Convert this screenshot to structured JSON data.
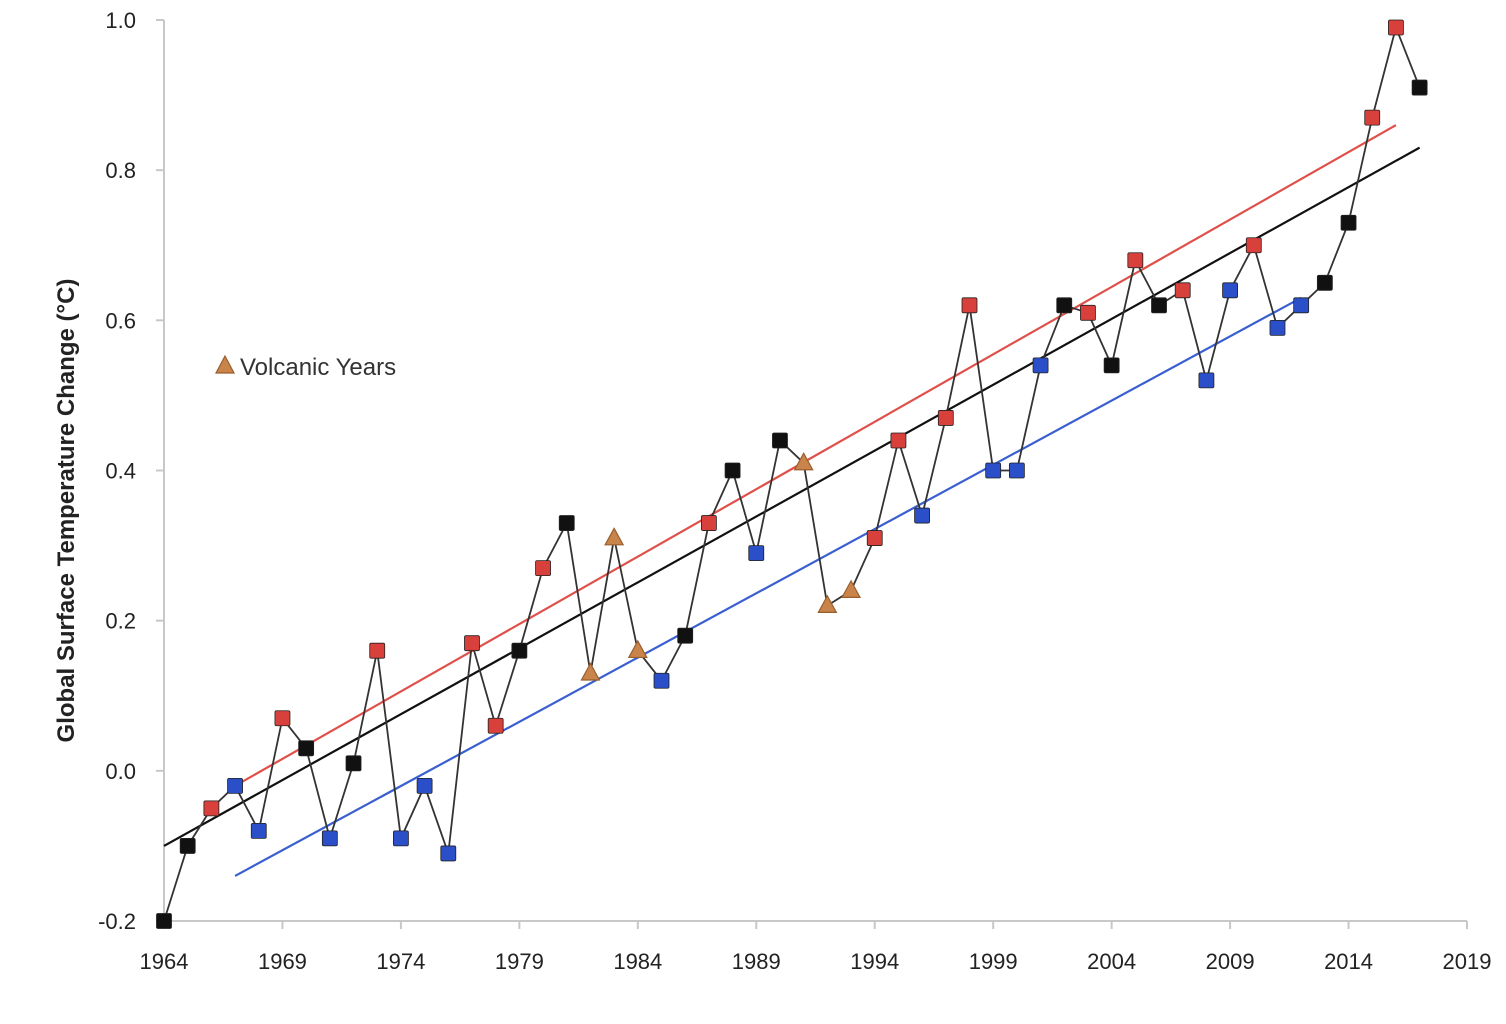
{
  "chart_data": {
    "type": "line",
    "title": "",
    "xlabel": "",
    "ylabel": "Global Surface Temperature Change (°C)",
    "xlim": [
      1964,
      2019
    ],
    "ylim": [
      -0.2,
      1.0
    ],
    "x_ticks": [
      "1964",
      "1969",
      "1974",
      "1979",
      "1984",
      "1989",
      "1994",
      "1999",
      "2004",
      "2009",
      "2014",
      "2019"
    ],
    "y_ticks": [
      "-0.2",
      "0.0",
      "0.2",
      "0.4",
      "0.6",
      "0.8",
      "1.0"
    ],
    "grid": false,
    "legend": {
      "placement": "left",
      "entries": [
        {
          "label": "Volcanic Years",
          "marker": "triangle",
          "color": "#c8844a"
        }
      ]
    },
    "colors": {
      "red": "#d8403c",
      "blue": "#2a4fc8",
      "black": "#111111",
      "volcanic": "#c8844a",
      "red_line": "#e0504a",
      "black_line": "#111111",
      "blue_line": "#3a5fd0"
    },
    "series": [
      {
        "values": [
          {
            "x": 1964,
            "y": -0.2,
            "c": "black"
          },
          {
            "x": 1965,
            "y": -0.1,
            "c": "black"
          },
          {
            "x": 1966,
            "y": -0.05,
            "c": "red"
          },
          {
            "x": 1967,
            "y": -0.02,
            "c": "blue"
          },
          {
            "x": 1968,
            "y": -0.08,
            "c": "blue"
          },
          {
            "x": 1969,
            "y": 0.07,
            "c": "red"
          },
          {
            "x": 1970,
            "y": 0.03,
            "c": "black"
          },
          {
            "x": 1971,
            "y": -0.09,
            "c": "blue"
          },
          {
            "x": 1972,
            "y": 0.01,
            "c": "black"
          },
          {
            "x": 1973,
            "y": 0.16,
            "c": "red"
          },
          {
            "x": 1974,
            "y": -0.09,
            "c": "blue"
          },
          {
            "x": 1975,
            "y": -0.02,
            "c": "blue"
          },
          {
            "x": 1976,
            "y": -0.11,
            "c": "blue"
          },
          {
            "x": 1977,
            "y": 0.17,
            "c": "red"
          },
          {
            "x": 1978,
            "y": 0.06,
            "c": "red"
          },
          {
            "x": 1979,
            "y": 0.16,
            "c": "black"
          },
          {
            "x": 1980,
            "y": 0.27,
            "c": "red"
          },
          {
            "x": 1981,
            "y": 0.33,
            "c": "black"
          },
          {
            "x": 1982,
            "y": 0.13,
            "c": "volcanic"
          },
          {
            "x": 1983,
            "y": 0.31,
            "c": "volcanic"
          },
          {
            "x": 1984,
            "y": 0.16,
            "c": "volcanic"
          },
          {
            "x": 1985,
            "y": 0.12,
            "c": "blue"
          },
          {
            "x": 1986,
            "y": 0.18,
            "c": "black"
          },
          {
            "x": 1987,
            "y": 0.33,
            "c": "red"
          },
          {
            "x": 1988,
            "y": 0.4,
            "c": "black"
          },
          {
            "x": 1989,
            "y": 0.29,
            "c": "blue"
          },
          {
            "x": 1990,
            "y": 0.44,
            "c": "black"
          },
          {
            "x": 1991,
            "y": 0.41,
            "c": "volcanic"
          },
          {
            "x": 1992,
            "y": 0.22,
            "c": "volcanic"
          },
          {
            "x": 1993,
            "y": 0.24,
            "c": "volcanic"
          },
          {
            "x": 1994,
            "y": 0.31,
            "c": "red"
          },
          {
            "x": 1995,
            "y": 0.44,
            "c": "red"
          },
          {
            "x": 1996,
            "y": 0.34,
            "c": "blue"
          },
          {
            "x": 1997,
            "y": 0.47,
            "c": "red"
          },
          {
            "x": 1998,
            "y": 0.62,
            "c": "red"
          },
          {
            "x": 1999,
            "y": 0.4,
            "c": "blue"
          },
          {
            "x": 2000,
            "y": 0.4,
            "c": "blue"
          },
          {
            "x": 2001,
            "y": 0.54,
            "c": "blue"
          },
          {
            "x": 2002,
            "y": 0.62,
            "c": "black"
          },
          {
            "x": 2003,
            "y": 0.61,
            "c": "red"
          },
          {
            "x": 2004,
            "y": 0.54,
            "c": "black"
          },
          {
            "x": 2005,
            "y": 0.68,
            "c": "red"
          },
          {
            "x": 2006,
            "y": 0.62,
            "c": "black"
          },
          {
            "x": 2007,
            "y": 0.64,
            "c": "red"
          },
          {
            "x": 2008,
            "y": 0.52,
            "c": "blue"
          },
          {
            "x": 2009,
            "y": 0.64,
            "c": "blue"
          },
          {
            "x": 2010,
            "y": 0.7,
            "c": "red"
          },
          {
            "x": 2011,
            "y": 0.59,
            "c": "blue"
          },
          {
            "x": 2012,
            "y": 0.62,
            "c": "blue"
          },
          {
            "x": 2013,
            "y": 0.65,
            "c": "black"
          },
          {
            "x": 2014,
            "y": 0.73,
            "c": "black"
          },
          {
            "x": 2015,
            "y": 0.87,
            "c": "red"
          },
          {
            "x": 2016,
            "y": 0.99,
            "c": "red"
          },
          {
            "x": 2017,
            "y": 0.91,
            "c": "black"
          }
        ]
      }
    ],
    "trend_lines": [
      {
        "color": "red_line",
        "x": [
          1967,
          2016
        ],
        "y": [
          -0.02,
          0.86
        ]
      },
      {
        "color": "black_line",
        "x": [
          1964,
          2017
        ],
        "y": [
          -0.1,
          0.83
        ]
      },
      {
        "color": "blue_line",
        "x": [
          1967,
          2012
        ],
        "y": [
          -0.14,
          0.63
        ]
      }
    ]
  }
}
